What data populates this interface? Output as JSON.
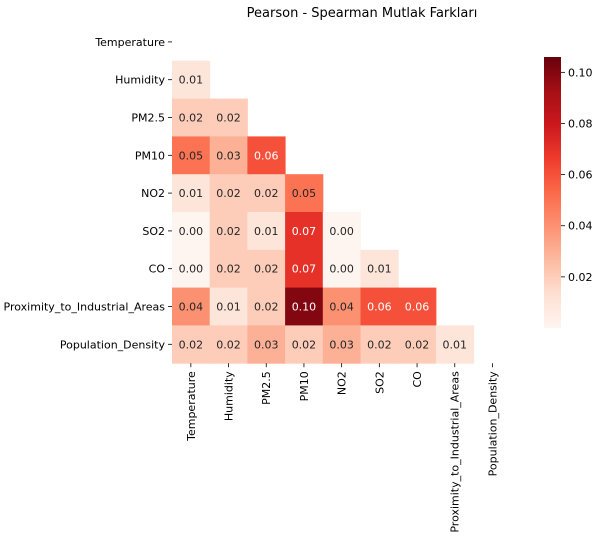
{
  "chart_data": {
    "type": "heatmap",
    "title": "Pearson - Spearman Mutlak Farkları",
    "variables": [
      "Temperature",
      "Humidity",
      "PM2.5",
      "PM10",
      "NO2",
      "SO2",
      "CO",
      "Proximity_to_Industrial_Areas",
      "Population_Density"
    ],
    "mask": "upper-triangle-including-diagonal",
    "values": [
      [],
      [
        0.01
      ],
      [
        0.02,
        0.02
      ],
      [
        0.05,
        0.03,
        0.06
      ],
      [
        0.01,
        0.02,
        0.02,
        0.05
      ],
      [
        0.0,
        0.02,
        0.01,
        0.07,
        0.0
      ],
      [
        0.0,
        0.02,
        0.02,
        0.07,
        0.0,
        0.01
      ],
      [
        0.04,
        0.01,
        0.02,
        0.1,
        0.04,
        0.06,
        0.06
      ],
      [
        0.02,
        0.02,
        0.03,
        0.02,
        0.03,
        0.02,
        0.02,
        0.01
      ]
    ],
    "annotation_format": "0.00",
    "colormap": "Reds",
    "colorbar": {
      "vmin": 0.0,
      "vmax": 0.106,
      "ticks": [
        "0.02",
        "0.04",
        "0.06",
        "0.08",
        "0.10"
      ]
    }
  }
}
